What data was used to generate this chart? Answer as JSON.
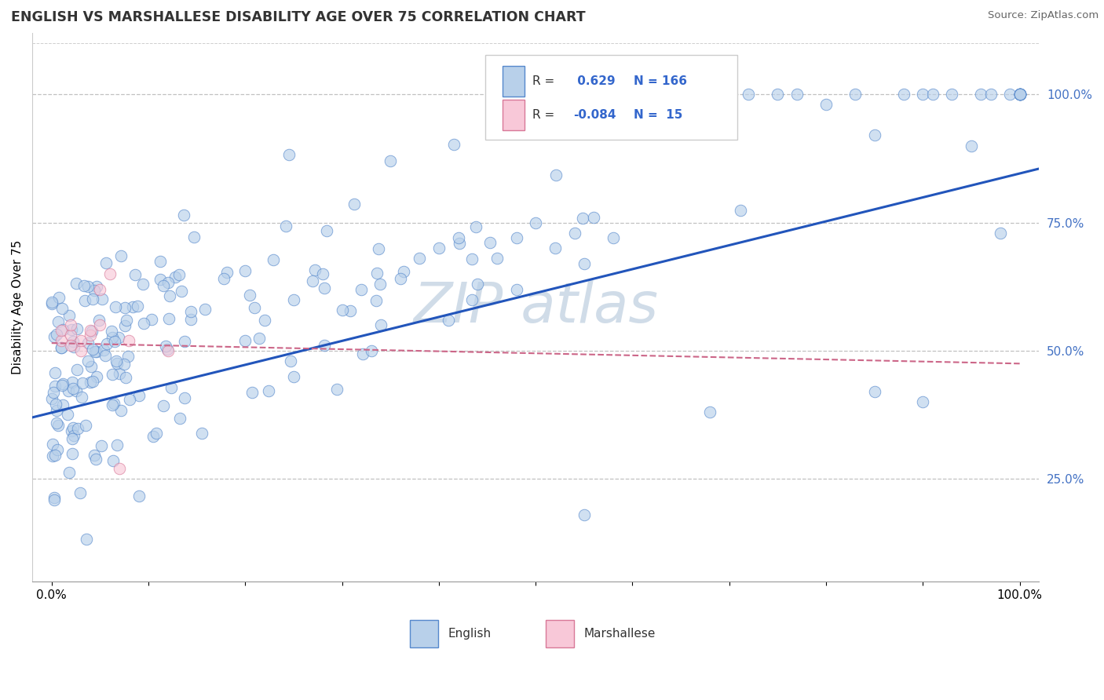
{
  "title": "ENGLISH VS MARSHALLESE DISABILITY AGE OVER 75 CORRELATION CHART",
  "source": "Source: ZipAtlas.com",
  "ylabel": "Disability Age Over 75",
  "xlim": [
    -0.02,
    1.02
  ],
  "ylim": [
    0.05,
    1.12
  ],
  "y_tick_positions_right": [
    0.25,
    0.5,
    0.75,
    1.0
  ],
  "y_tick_labels_right": [
    "25.0%",
    "50.0%",
    "75.0%",
    "100.0%"
  ],
  "x_tick_pos": [
    0.0,
    0.1,
    0.2,
    0.3,
    0.4,
    0.5,
    0.6,
    0.7,
    0.8,
    0.9,
    1.0
  ],
  "x_tick_labels": [
    "0.0%",
    "",
    "",
    "",
    "",
    "",
    "",
    "",
    "",
    "",
    "100.0%"
  ],
  "english_R": 0.629,
  "english_N": 166,
  "marshallese_R": -0.084,
  "marshallese_N": 15,
  "english_fill": "#b8d0ea",
  "english_edge": "#5588cc",
  "marshallese_fill": "#f8c8d8",
  "marshallese_edge": "#d87898",
  "english_line_color": "#2255bb",
  "marshallese_line_color": "#cc6688",
  "grid_color": "#bbbbbb",
  "watermark_color": "#d0dce8",
  "background": "#ffffff",
  "eng_line_y0": 0.37,
  "eng_line_y1": 0.855,
  "mar_line_y0": 0.515,
  "mar_line_y1": 0.475,
  "mar_line_x0": 0.0,
  "mar_line_x1": 1.0
}
